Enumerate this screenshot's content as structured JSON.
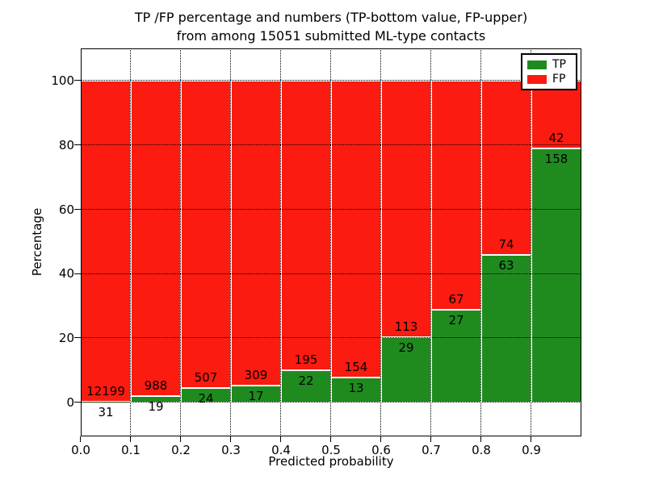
{
  "figure": {
    "title_line1": "TP /FP percentage and numbers (TP-bottom value, FP-upper)",
    "title_line2": "from among 15051 submitted ML-type contacts",
    "xlabel": "Predicted probability",
    "ylabel": "Percentage"
  },
  "chart_data": {
    "type": "bar",
    "stacked": true,
    "normalized": "each 0.1-wide bin scaled to 100%",
    "title": "TP /FP percentage and numbers (TP-bottom value, FP-upper) from among 15051 submitted ML-type contacts",
    "xlabel": "Predicted probability",
    "ylabel": "Percentage",
    "total_contacts": 15051,
    "bins": [
      "0.0-0.1",
      "0.1-0.2",
      "0.2-0.3",
      "0.3-0.4",
      "0.4-0.5",
      "0.5-0.6",
      "0.6-0.7",
      "0.7-0.8",
      "0.8-0.9",
      "0.9-1.0"
    ],
    "series": [
      {
        "name": "TP",
        "color": "#1f8b1f",
        "counts": [
          31,
          19,
          24,
          17,
          22,
          13,
          29,
          27,
          63,
          158
        ],
        "percent_of_bin": [
          0.3,
          1.9,
          4.5,
          5.2,
          10.1,
          7.8,
          20.4,
          28.7,
          46.0,
          79.0
        ]
      },
      {
        "name": "FP",
        "color": "#fb1b10",
        "counts": [
          12199,
          988,
          507,
          309,
          195,
          154,
          113,
          67,
          74,
          42
        ],
        "percent_of_bin": [
          99.7,
          98.1,
          95.5,
          94.8,
          89.9,
          92.2,
          79.6,
          71.3,
          54.0,
          21.0
        ]
      }
    ],
    "x_ticklabels": [
      "0.0",
      "0.1",
      "0.2",
      "0.3",
      "0.4",
      "0.5",
      "0.6",
      "0.7",
      "0.8",
      "0.9"
    ],
    "y_ticks": [
      0,
      20,
      40,
      60,
      80,
      100
    ],
    "xlim": [
      0.0,
      1.0
    ],
    "ylim": [
      -10.5,
      110.2
    ],
    "grid": "dotted",
    "bar_edge_color": "#ffffff",
    "legend_position": "upper right"
  },
  "legend": {
    "items": [
      {
        "label": "TP",
        "color": "#1f8b1f"
      },
      {
        "label": "FP",
        "color": "#fb1b10"
      }
    ]
  }
}
